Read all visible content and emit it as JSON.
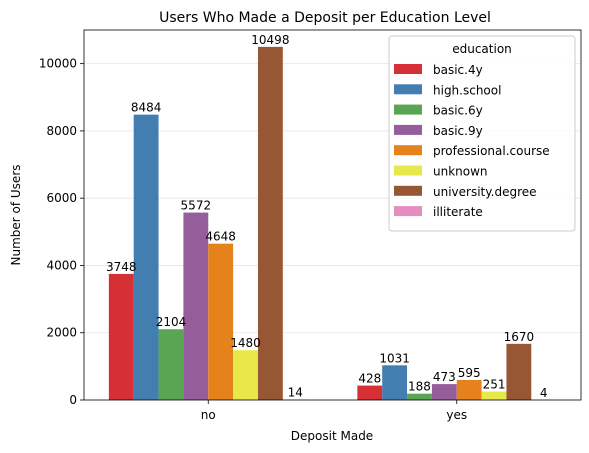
{
  "chart_data": {
    "type": "bar",
    "title": "Users Who Made a Deposit per Education Level",
    "xlabel": "Deposit Made",
    "ylabel": "Number of Users",
    "categories": [
      "no",
      "yes"
    ],
    "ylim": [
      0,
      11000
    ],
    "yticks": [
      0,
      2000,
      4000,
      6000,
      8000,
      10000
    ],
    "grid": "horizontal",
    "legend": {
      "title": "education",
      "placement": "top-right"
    },
    "series": [
      {
        "name": "basic.4y",
        "color": "#d62f35",
        "values": [
          3748,
          428
        ]
      },
      {
        "name": "high.school",
        "color": "#437eb0",
        "values": [
          8484,
          1031
        ]
      },
      {
        "name": "basic.6y",
        "color": "#5aa554",
        "values": [
          2104,
          188
        ]
      },
      {
        "name": "basic.9y",
        "color": "#955e9b",
        "values": [
          5572,
          473
        ]
      },
      {
        "name": "professional.course",
        "color": "#e6821c",
        "values": [
          4648,
          595
        ]
      },
      {
        "name": "unknown",
        "color": "#e9e84b",
        "values": [
          1480,
          251
        ]
      },
      {
        "name": "university.degree",
        "color": "#985734",
        "values": [
          10498,
          1670
        ]
      },
      {
        "name": "illiterate",
        "color": "#e58dc0",
        "values": [
          14,
          4
        ]
      }
    ]
  }
}
